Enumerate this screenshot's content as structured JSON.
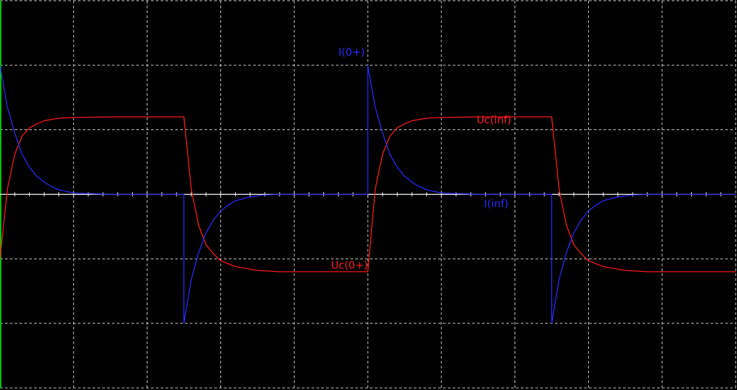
{
  "chart_data": {
    "type": "line",
    "title": "",
    "xlabel": "",
    "ylabel": "",
    "xlim": [
      0,
      10
    ],
    "ylim": [
      -3,
      3
    ],
    "x_divisions": 10,
    "y_divisions": 6,
    "grid": true,
    "legend": "none",
    "colors": {
      "background": "#000000",
      "grid": "#c8c8c8",
      "axis": "#ffffff",
      "left_edge": "#00c800",
      "voltage": "#ff1a1a",
      "current": "#2a2aff"
    },
    "series": [
      {
        "color": "#ff1a1a",
        "points": [
          [
            0,
            -1
          ],
          [
            0.1,
            0.08
          ],
          [
            0.2,
            0.62
          ],
          [
            0.3,
            0.9
          ],
          [
            0.4,
            1.03
          ],
          [
            0.5,
            1.09
          ],
          [
            0.6,
            1.14
          ],
          [
            0.8,
            1.18
          ],
          [
            1.0,
            1.19
          ],
          [
            1.5,
            1.2
          ],
          [
            2.0,
            1.2
          ],
          [
            2.5,
            1.2
          ],
          [
            2.6,
            0.08
          ],
          [
            2.7,
            -0.48
          ],
          [
            2.8,
            -0.78
          ],
          [
            2.9,
            -0.92
          ],
          [
            3.0,
            -1.03
          ],
          [
            3.2,
            -1.12
          ],
          [
            3.5,
            -1.18
          ],
          [
            3.8,
            -1.2
          ],
          [
            4.5,
            -1.2
          ],
          [
            5.0,
            -1.2
          ],
          [
            5.1,
            0.08
          ],
          [
            5.2,
            0.62
          ],
          [
            5.3,
            0.9
          ],
          [
            5.4,
            1.03
          ],
          [
            5.5,
            1.09
          ],
          [
            5.6,
            1.14
          ],
          [
            5.8,
            1.18
          ],
          [
            6.0,
            1.19
          ],
          [
            6.5,
            1.2
          ],
          [
            7.0,
            1.2
          ],
          [
            7.5,
            1.2
          ],
          [
            7.6,
            0.08
          ],
          [
            7.7,
            -0.48
          ],
          [
            7.8,
            -0.78
          ],
          [
            7.9,
            -0.92
          ],
          [
            8.0,
            -1.03
          ],
          [
            8.2,
            -1.12
          ],
          [
            8.5,
            -1.18
          ],
          [
            8.8,
            -1.2
          ],
          [
            9.5,
            -1.2
          ],
          [
            10.0,
            -1.2
          ]
        ]
      },
      {
        "color": "#2a2aff",
        "points": [
          [
            0,
            2
          ],
          [
            0.1,
            1.35
          ],
          [
            0.2,
            0.95
          ],
          [
            0.3,
            0.62
          ],
          [
            0.4,
            0.42
          ],
          [
            0.5,
            0.28
          ],
          [
            0.6,
            0.19
          ],
          [
            0.7,
            0.12
          ],
          [
            0.8,
            0.07
          ],
          [
            1.0,
            0.02
          ],
          [
            1.5,
            0.0
          ],
          [
            2.5,
            0.0
          ],
          [
            2.5,
            -2
          ],
          [
            2.6,
            -1.32
          ],
          [
            2.7,
            -0.9
          ],
          [
            2.8,
            -0.6
          ],
          [
            2.9,
            -0.4
          ],
          [
            3.0,
            -0.26
          ],
          [
            3.1,
            -0.17
          ],
          [
            3.2,
            -0.1
          ],
          [
            3.4,
            -0.04
          ],
          [
            3.6,
            -0.01
          ],
          [
            3.8,
            0.0
          ],
          [
            5.0,
            0.0
          ],
          [
            5.0,
            2
          ],
          [
            5.1,
            1.35
          ],
          [
            5.2,
            0.95
          ],
          [
            5.3,
            0.62
          ],
          [
            5.4,
            0.42
          ],
          [
            5.5,
            0.28
          ],
          [
            5.6,
            0.19
          ],
          [
            5.7,
            0.12
          ],
          [
            5.8,
            0.07
          ],
          [
            6.0,
            0.02
          ],
          [
            6.5,
            0.0
          ],
          [
            7.5,
            0.0
          ],
          [
            7.5,
            -2
          ],
          [
            7.6,
            -1.32
          ],
          [
            7.7,
            -0.9
          ],
          [
            7.8,
            -0.6
          ],
          [
            7.9,
            -0.4
          ],
          [
            8.0,
            -0.26
          ],
          [
            8.1,
            -0.17
          ],
          [
            8.2,
            -0.1
          ],
          [
            8.4,
            -0.04
          ],
          [
            8.6,
            -0.01
          ],
          [
            8.8,
            0.0
          ],
          [
            10.0,
            0.0
          ]
        ]
      }
    ],
    "annotations": [
      {
        "text": "I(0+)",
        "x": 4.6,
        "y": 2.15,
        "color": "#2a2aff"
      },
      {
        "text": "Uc(inf)",
        "x": 6.48,
        "y": 1.1,
        "color": "#ff1a1a"
      },
      {
        "text": "I(inf)",
        "x": 6.58,
        "y": -0.2,
        "color": "#2a2aff"
      },
      {
        "text": "Uc(0+)",
        "x": 4.5,
        "y": -1.15,
        "color": "#ff1a1a"
      }
    ]
  }
}
